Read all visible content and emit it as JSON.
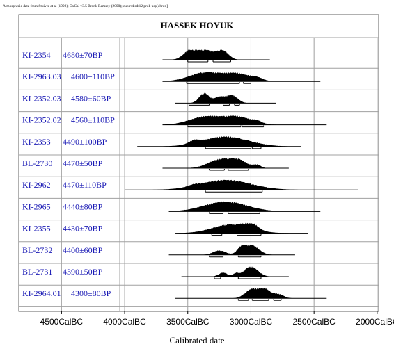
{
  "chart_data": {
    "type": "other",
    "header_note": "Atmospheric data from Stuiver et al (1998); OxCal v3.5 Bronk Ramsey (2000); cub r:4 sd:12 prob usp[chron]",
    "title": "HASSEK HOYUK",
    "xlabel": "Calibrated date",
    "xlim_calBC": [
      4750,
      1900
    ],
    "x_tick_values": [
      4500,
      4000,
      3500,
      3000,
      2500,
      2000
    ],
    "x_tick_labels": [
      "4500CalBC",
      "4000CalBC",
      "3500CalBC",
      "3000CalBC",
      "2500CalBC",
      "2000CalBC"
    ],
    "grid": "vertical at ticks",
    "samples": [
      {
        "lab_id": "KI-2354",
        "age": "4680±70BP",
        "range_calBC": [
          3700,
          2850
        ],
        "peaks": [
          [
            3370,
            1.0,
            80
          ],
          [
            3475,
            0.8,
            55
          ],
          [
            3220,
            0.8,
            45
          ]
        ],
        "range_bars": [
          [
            3500,
            3340
          ],
          [
            3300,
            3160
          ]
        ]
      },
      {
        "lab_id": "KI-2963.03",
        "age": "4600±110BP",
        "range_calBC": [
          3700,
          2450
        ],
        "peaks": [
          [
            3350,
            0.95,
            130
          ],
          [
            3100,
            0.7,
            90
          ],
          [
            2950,
            0.3,
            50
          ]
        ],
        "range_bars": [
          [
            3510,
            3090
          ],
          [
            3060,
            3000
          ]
        ]
      },
      {
        "lab_id": "KI-2352.03",
        "age": "4580±60BP",
        "range_calBC": [
          3600,
          2800
        ],
        "peaks": [
          [
            3370,
            1.0,
            40
          ],
          [
            3150,
            0.8,
            45
          ],
          [
            3250,
            0.6,
            40
          ]
        ],
        "range_bars": [
          [
            3490,
            3330
          ],
          [
            3220,
            3170
          ],
          [
            3130,
            3090
          ]
        ]
      },
      {
        "lab_id": "KI-2352.02",
        "age": "4560±110BP",
        "range_calBC": [
          3700,
          2400
        ],
        "peaks": [
          [
            3350,
            0.85,
            130
          ],
          [
            3100,
            0.75,
            100
          ],
          [
            2950,
            0.25,
            40
          ]
        ],
        "range_bars": [
          [
            3500,
            3080
          ],
          [
            3070,
            2900
          ]
        ]
      },
      {
        "lab_id": "KI-2353",
        "age": "4490±100BP",
        "range_calBC": [
          3900,
          2600
        ],
        "peaks": [
          [
            3200,
            1.0,
            180
          ],
          [
            3450,
            0.3,
            40
          ]
        ],
        "range_bars": [
          [
            3360,
            3000
          ],
          [
            2990,
            2920
          ]
        ]
      },
      {
        "lab_id": "BL-2730",
        "age": "4470±50BP",
        "range_calBC": [
          3700,
          2700
        ],
        "peaks": [
          [
            3250,
            0.85,
            90
          ],
          [
            3100,
            0.75,
            70
          ],
          [
            2950,
            0.3,
            30
          ]
        ],
        "range_bars": [
          [
            3330,
            3210
          ],
          [
            3180,
            3020
          ]
        ]
      },
      {
        "lab_id": "KI-2962",
        "age": "4470±110BP",
        "range_calBC": [
          4000,
          2150
        ],
        "peaks": [
          [
            3200,
            1.0,
            200
          ],
          [
            3450,
            0.15,
            40
          ]
        ],
        "range_bars": [
          [
            3360,
            2910
          ]
        ]
      },
      {
        "lab_id": "KI-2965",
        "age": "4440±80BP",
        "range_calBC": [
          3650,
          2450
        ],
        "peaks": [
          [
            3200,
            1.0,
            170
          ]
        ],
        "range_bars": [
          [
            3330,
            3220
          ],
          [
            3180,
            2930
          ]
        ]
      },
      {
        "lab_id": "KI-2355",
        "age": "4430±70BP",
        "range_calBC": [
          3600,
          2550
        ],
        "peaks": [
          [
            3150,
            0.9,
            150
          ],
          [
            3000,
            0.6,
            50
          ]
        ],
        "range_bars": [
          [
            3310,
            3230
          ],
          [
            3110,
            2920
          ]
        ]
      },
      {
        "lab_id": "BL-2732",
        "age": "4400±60BP",
        "range_calBC": [
          3650,
          2650
        ],
        "peaks": [
          [
            3000,
            1.0,
            60
          ],
          [
            3250,
            0.45,
            50
          ],
          [
            3080,
            0.5,
            30
          ]
        ],
        "range_bars": [
          [
            3330,
            3220
          ],
          [
            3100,
            2920
          ]
        ]
      },
      {
        "lab_id": "BL-2731",
        "age": "4390±50BP",
        "range_calBC": [
          3550,
          2700
        ],
        "peaks": [
          [
            3000,
            1.0,
            55
          ],
          [
            3220,
            0.4,
            35
          ],
          [
            3120,
            0.3,
            20
          ]
        ],
        "range_bars": [
          [
            3290,
            3240
          ],
          [
            3100,
            2920
          ]
        ]
      },
      {
        "lab_id": "KI-2964.01",
        "age": "4300±80BP",
        "range_calBC": [
          3600,
          2400
        ],
        "peaks": [
          [
            2900,
            1.0,
            50
          ],
          [
            3000,
            0.8,
            50
          ],
          [
            2780,
            0.4,
            40
          ]
        ],
        "range_bars": [
          [
            3100,
            3020
          ],
          [
            2990,
            2860
          ],
          [
            2820,
            2760
          ]
        ]
      }
    ]
  },
  "colors": {
    "label_text": "#1a1ab5",
    "ink": "#000000",
    "grid": "#a0a0a0",
    "frame": "#606060"
  }
}
